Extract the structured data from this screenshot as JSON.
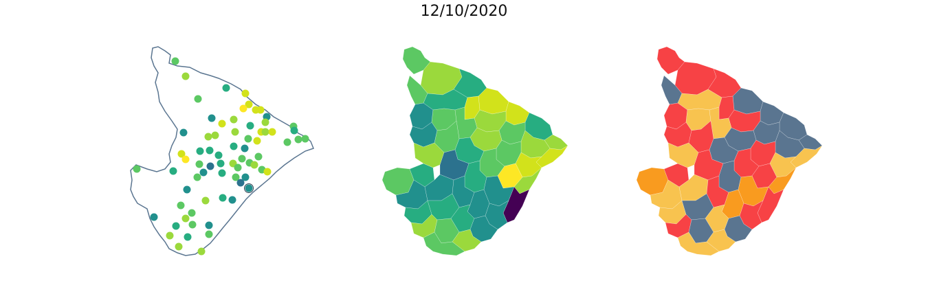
{
  "title": "12/10/2020",
  "colors": {
    "outline": "#5a7590",
    "viridis": [
      "#440154",
      "#3b528b",
      "#2c728e",
      "#21908d",
      "#27ad81",
      "#5cc863",
      "#9bd93c",
      "#d2e21b",
      "#fde725"
    ],
    "categories": {
      "slate": "#5a7590",
      "red": "#f74245",
      "gold": "#f8c34f",
      "orange": "#f99b1f"
    }
  },
  "maps": [
    {
      "name": "point-map",
      "kind": "points"
    },
    {
      "name": "choropleth-map",
      "kind": "choropleth"
    },
    {
      "name": "category-map",
      "kind": "categorical"
    }
  ]
}
